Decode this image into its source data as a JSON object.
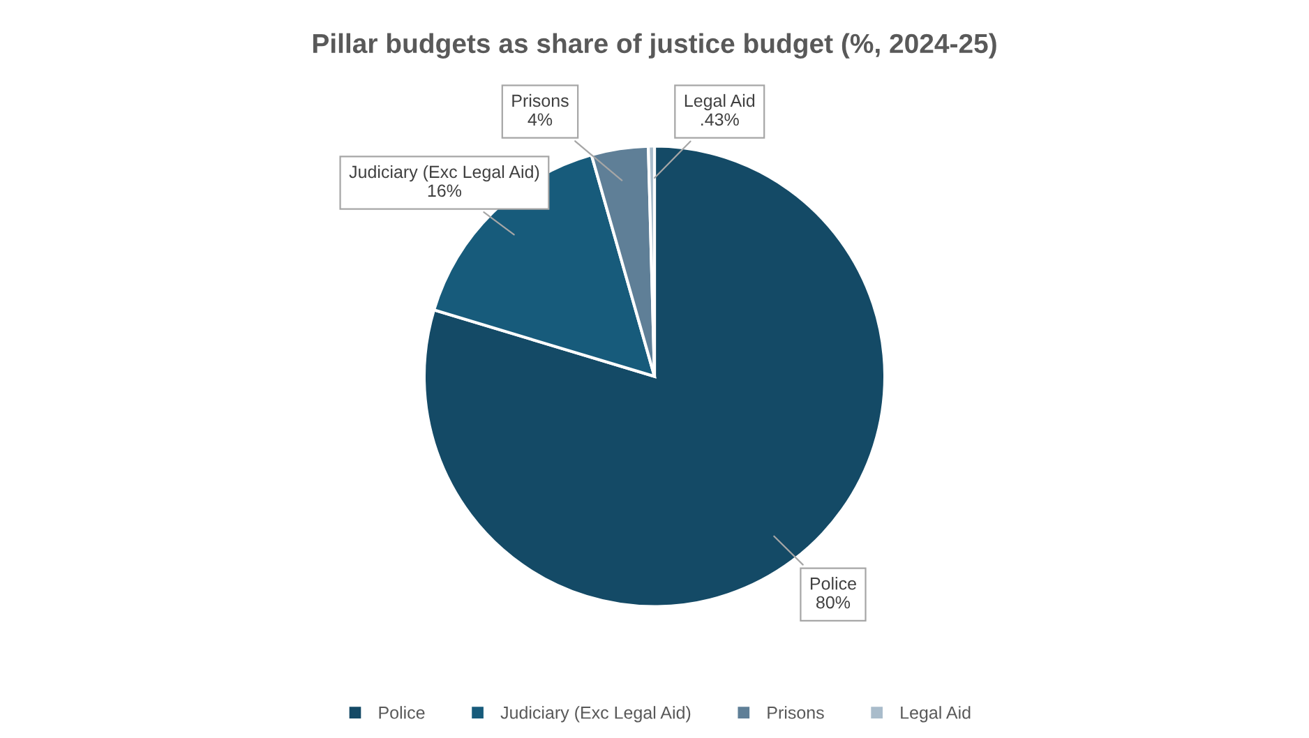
{
  "chart_data": {
    "type": "pie",
    "title": "Pillar budgets as share of justice budget (%, 2024-25)",
    "categories": [
      "Police",
      "Judiciary (Exc Legal Aid)",
      "Prisons",
      "Legal Aid"
    ],
    "values": [
      80,
      16,
      4,
      0.43
    ],
    "value_labels": [
      "80%",
      "16%",
      "4%",
      ".43%"
    ],
    "colors": [
      "#144a66",
      "#175b7b",
      "#5f7f97",
      "#a9bccb"
    ],
    "legend": "bottom"
  }
}
